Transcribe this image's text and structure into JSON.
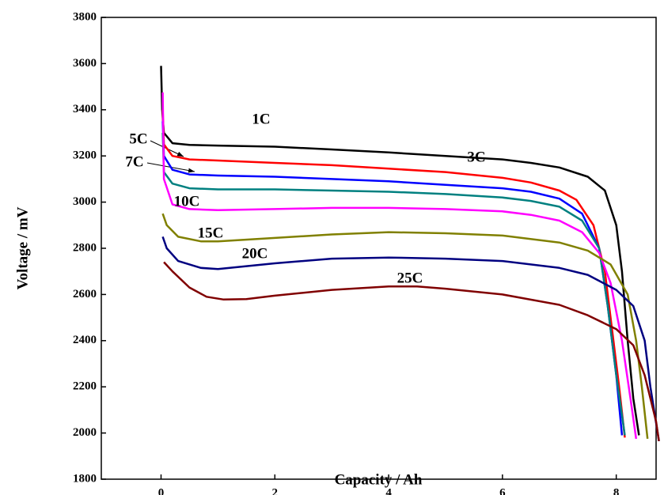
{
  "chart_data": {
    "type": "line",
    "x_label": "Capacity / Ah",
    "y_label": "Voltage / mV",
    "xlim": [
      -1.05,
      8.7
    ],
    "ylim": [
      1800,
      3800
    ],
    "xticks": [
      0,
      2,
      4,
      6,
      8
    ],
    "yticks": [
      1800,
      2000,
      2200,
      2400,
      2600,
      2800,
      3000,
      3200,
      3400,
      3600,
      3800
    ],
    "series": [
      {
        "name": "1C",
        "color": "#000000",
        "x": [
          0,
          0.02,
          0.05,
          0.2,
          0.5,
          1,
          2,
          3,
          4,
          5,
          6,
          6.5,
          7,
          7.5,
          7.8,
          8,
          8.1,
          8.2,
          8.3,
          8.4
        ],
        "values": [
          3590,
          3400,
          3300,
          3255,
          3248,
          3245,
          3240,
          3228,
          3215,
          3200,
          3185,
          3170,
          3150,
          3110,
          3050,
          2900,
          2700,
          2400,
          2150,
          1990
        ]
      },
      {
        "name": "3C",
        "color": "#ff0000",
        "x": [
          0.03,
          0.05,
          0.2,
          0.5,
          1,
          2,
          3,
          4,
          5,
          6,
          6.5,
          7,
          7.3,
          7.6,
          7.8,
          7.95,
          8.05,
          8.15
        ],
        "values": [
          3400,
          3250,
          3200,
          3185,
          3180,
          3170,
          3160,
          3145,
          3130,
          3105,
          3085,
          3050,
          3010,
          2900,
          2700,
          2400,
          2200,
          1980
        ]
      },
      {
        "name": "5C",
        "color": "#0000ff",
        "x": [
          0.03,
          0.05,
          0.2,
          0.5,
          1,
          2,
          3,
          4,
          5,
          6,
          6.5,
          7,
          7.4,
          7.7,
          7.85,
          8,
          8.1
        ],
        "values": [
          3350,
          3200,
          3140,
          3120,
          3115,
          3110,
          3100,
          3090,
          3075,
          3060,
          3045,
          3015,
          2950,
          2800,
          2550,
          2250,
          1990
        ]
      },
      {
        "name": "7C",
        "color": "#008080",
        "x": [
          0.03,
          0.05,
          0.2,
          0.5,
          1,
          2,
          3,
          4,
          5,
          6,
          6.5,
          7,
          7.4,
          7.7,
          7.85,
          8,
          8.15
        ],
        "values": [
          3300,
          3130,
          3080,
          3060,
          3055,
          3055,
          3050,
          3045,
          3035,
          3020,
          3005,
          2980,
          2920,
          2800,
          2550,
          2250,
          1990
        ]
      },
      {
        "name": "10C",
        "color": "#ff00ff",
        "x": [
          0.03,
          0.05,
          0.2,
          0.5,
          1,
          2,
          3,
          4,
          5,
          6,
          6.5,
          7,
          7.4,
          7.7,
          7.9,
          8.1,
          8.25,
          8.35
        ],
        "values": [
          3475,
          3100,
          2990,
          2970,
          2965,
          2970,
          2975,
          2975,
          2970,
          2960,
          2945,
          2920,
          2870,
          2780,
          2650,
          2400,
          2150,
          1975
        ]
      },
      {
        "name": "15C",
        "color": "#808000",
        "x": [
          0.03,
          0.1,
          0.3,
          0.7,
          1,
          2,
          3,
          4,
          5,
          6,
          7,
          7.5,
          7.9,
          8.2,
          8.35,
          8.45,
          8.55
        ],
        "values": [
          2950,
          2900,
          2850,
          2830,
          2830,
          2845,
          2860,
          2870,
          2865,
          2855,
          2825,
          2790,
          2730,
          2600,
          2400,
          2200,
          1975
        ]
      },
      {
        "name": "20C",
        "color": "#000080",
        "x": [
          0.03,
          0.1,
          0.3,
          0.7,
          1,
          2,
          3,
          4,
          5,
          6,
          7,
          7.5,
          8,
          8.3,
          8.5,
          8.6,
          8.75
        ],
        "values": [
          2850,
          2800,
          2745,
          2715,
          2710,
          2735,
          2755,
          2760,
          2755,
          2745,
          2715,
          2685,
          2620,
          2550,
          2400,
          2200,
          1965
        ]
      },
      {
        "name": "25C",
        "color": "#800000",
        "x": [
          0.05,
          0.2,
          0.5,
          0.8,
          1.1,
          1.5,
          2,
          3,
          4,
          4.5,
          5,
          6,
          7,
          7.5,
          8,
          8.3,
          8.5,
          8.7,
          8.75
        ],
        "values": [
          2740,
          2700,
          2630,
          2590,
          2578,
          2580,
          2595,
          2620,
          2635,
          2635,
          2625,
          2600,
          2555,
          2510,
          2450,
          2380,
          2250,
          2050,
          1965
        ]
      }
    ]
  }
}
